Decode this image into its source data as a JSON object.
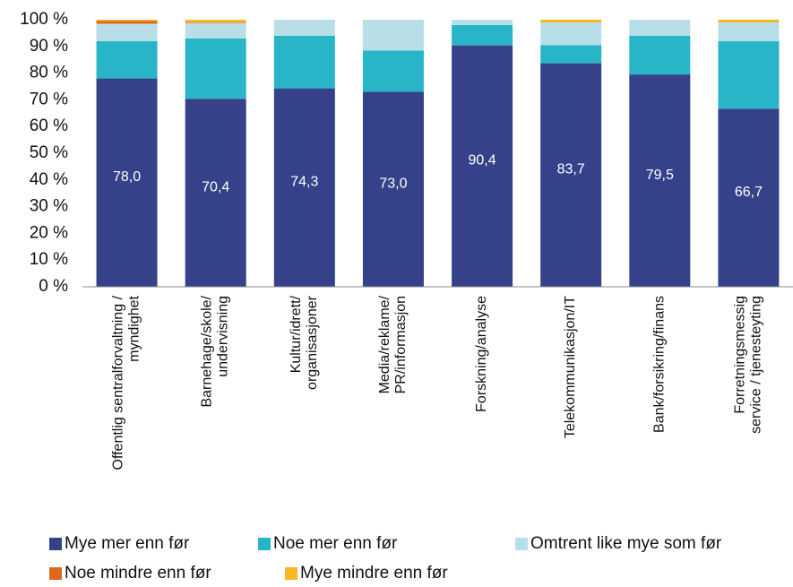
{
  "chart_data": {
    "type": "stacked-bar",
    "categories": [
      [
        "Offentlig sentralforvaltning /",
        "myndighet"
      ],
      [
        "Barnehage/skole/",
        "undervisning"
      ],
      [
        "Kultur/idrett/",
        "organisasjoner"
      ],
      [
        "Media/reklame/",
        "PR/informasjon"
      ],
      [
        "Forskning/analyse"
      ],
      [
        "Telekommunikasjon/IT"
      ],
      [
        "Bank/forsikring/finans"
      ],
      [
        "Forretningsmessig",
        "service / tjenesteyting"
      ]
    ],
    "series": [
      {
        "name": "Mye mer enn før",
        "color": "#35428a",
        "values": [
          78.0,
          70.4,
          74.3,
          73.0,
          90.4,
          83.7,
          79.5,
          66.7
        ],
        "value_labels": [
          "78,0",
          "70,4",
          "74,3",
          "73,0",
          "90,4",
          "83,7",
          "79,5",
          "66,7"
        ]
      },
      {
        "name": "Noe mer enn før",
        "color": "#29b5c8",
        "values": [
          14.0,
          22.6,
          19.7,
          15.5,
          7.6,
          6.8,
          14.5,
          25.3
        ]
      },
      {
        "name": "Omtrent like mye som før",
        "color": "#b8dfe8",
        "values": [
          6.5,
          5.8,
          6.0,
          11.5,
          2.0,
          8.5,
          6.0,
          7.0
        ]
      },
      {
        "name": "Noe mindre enn før",
        "color": "#e2671e",
        "values": [
          1.0,
          0.2,
          0,
          0,
          0,
          0,
          0,
          0
        ]
      },
      {
        "name": "Mye mindre enn før",
        "color": "#f7b823",
        "values": [
          0.5,
          1.0,
          0,
          0,
          0,
          1.0,
          0,
          1.0
        ]
      }
    ],
    "ylim": [
      0,
      100
    ],
    "yticks": [
      {
        "value": 0,
        "label": "0 %"
      },
      {
        "value": 10,
        "label": "10 %"
      },
      {
        "value": 20,
        "label": "20 %"
      },
      {
        "value": 30,
        "label": "30 %"
      },
      {
        "value": 40,
        "label": "40 %"
      },
      {
        "value": 50,
        "label": "50 %"
      },
      {
        "value": 60,
        "label": "60 %"
      },
      {
        "value": 70,
        "label": "70 %"
      },
      {
        "value": 80,
        "label": "80 %"
      },
      {
        "value": 90,
        "label": "90 %"
      },
      {
        "value": 100,
        "label": "100 %"
      }
    ],
    "grid": false
  }
}
